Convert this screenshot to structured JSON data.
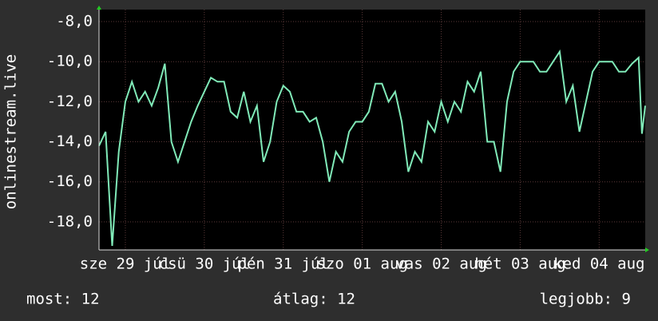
{
  "chart_data": {
    "type": "line",
    "y_label": "onlinestream.live",
    "x": [
      0,
      2,
      4,
      6,
      8,
      10,
      12,
      14,
      16,
      18,
      20,
      22,
      24,
      26,
      28,
      30,
      32,
      34,
      36,
      38,
      40,
      42,
      44,
      46,
      48,
      50,
      52,
      54,
      56,
      58,
      60,
      62,
      64,
      66,
      68,
      70,
      72,
      74,
      76,
      78,
      80,
      82,
      84,
      86,
      88,
      90,
      92,
      94,
      96,
      98,
      100,
      102,
      104,
      106,
      108,
      110,
      112,
      114,
      116,
      118,
      120,
      122,
      124,
      126,
      128,
      130,
      132,
      134,
      136,
      138,
      140,
      142,
      144,
      146,
      148,
      150,
      152,
      154,
      156,
      158,
      160,
      162,
      164,
      165,
      166
    ],
    "series": [
      {
        "color": "#80eab8",
        "values": [
          -14.2,
          -13.5,
          -19.2,
          -14.5,
          -12,
          -11,
          -12,
          -11.5,
          -12.2,
          -11.3,
          -10.1,
          -14,
          -15,
          -14,
          -13,
          -12.2,
          -11.5,
          -10.8,
          -11,
          -11,
          -12.5,
          -12.8,
          -11.5,
          -13,
          -12.2,
          -15,
          -14,
          -12,
          -11.2,
          -11.5,
          -12.5,
          -12.5,
          -13,
          -12.8,
          -14,
          -16,
          -14.5,
          -15,
          -13.5,
          -13,
          -13,
          -12.5,
          -11.1,
          -11.1,
          -12,
          -11.5,
          -13,
          -15.5,
          -14.5,
          -15,
          -13,
          -13.5,
          -12,
          -13,
          -12,
          -12.5,
          -11,
          -11.5,
          -10.5,
          -14,
          -14,
          -15.5,
          -12,
          -10.5,
          -10,
          -10,
          -10,
          -10.5,
          -10.5,
          -10,
          -9.5,
          -12,
          -11.2,
          -13.5,
          -12,
          -10.5,
          -10,
          -10,
          -10,
          -10.5,
          -10.5,
          -10.1,
          -9.8,
          -13.6,
          -12.2
        ]
      }
    ],
    "xlim": [
      0,
      166
    ],
    "xticks": [
      {
        "value": 8,
        "label": "sze 29 júl"
      },
      {
        "value": 32,
        "label": "csü 30 júl"
      },
      {
        "value": 56,
        "label": "pén 31 júl"
      },
      {
        "value": 80,
        "label": "szo 01 aug"
      },
      {
        "value": 104,
        "label": "vas 02 aug"
      },
      {
        "value": 128,
        "label": "hét 03 aug"
      },
      {
        "value": 152,
        "label": "ked 04 aug"
      }
    ],
    "ylim": [
      -19.4,
      -7.4
    ],
    "yticks": [
      {
        "value": -18,
        "label": "-18,0"
      },
      {
        "value": -16,
        "label": "-16,0"
      },
      {
        "value": -14,
        "label": "-14,0"
      },
      {
        "value": -12,
        "label": "-12,0"
      },
      {
        "value": -10,
        "label": "-10,0"
      },
      {
        "value": -8,
        "label": "-8,0"
      }
    ],
    "grid": true,
    "summary": [
      "most: 12",
      "átlag: 12",
      "legjobb: 9"
    ]
  }
}
